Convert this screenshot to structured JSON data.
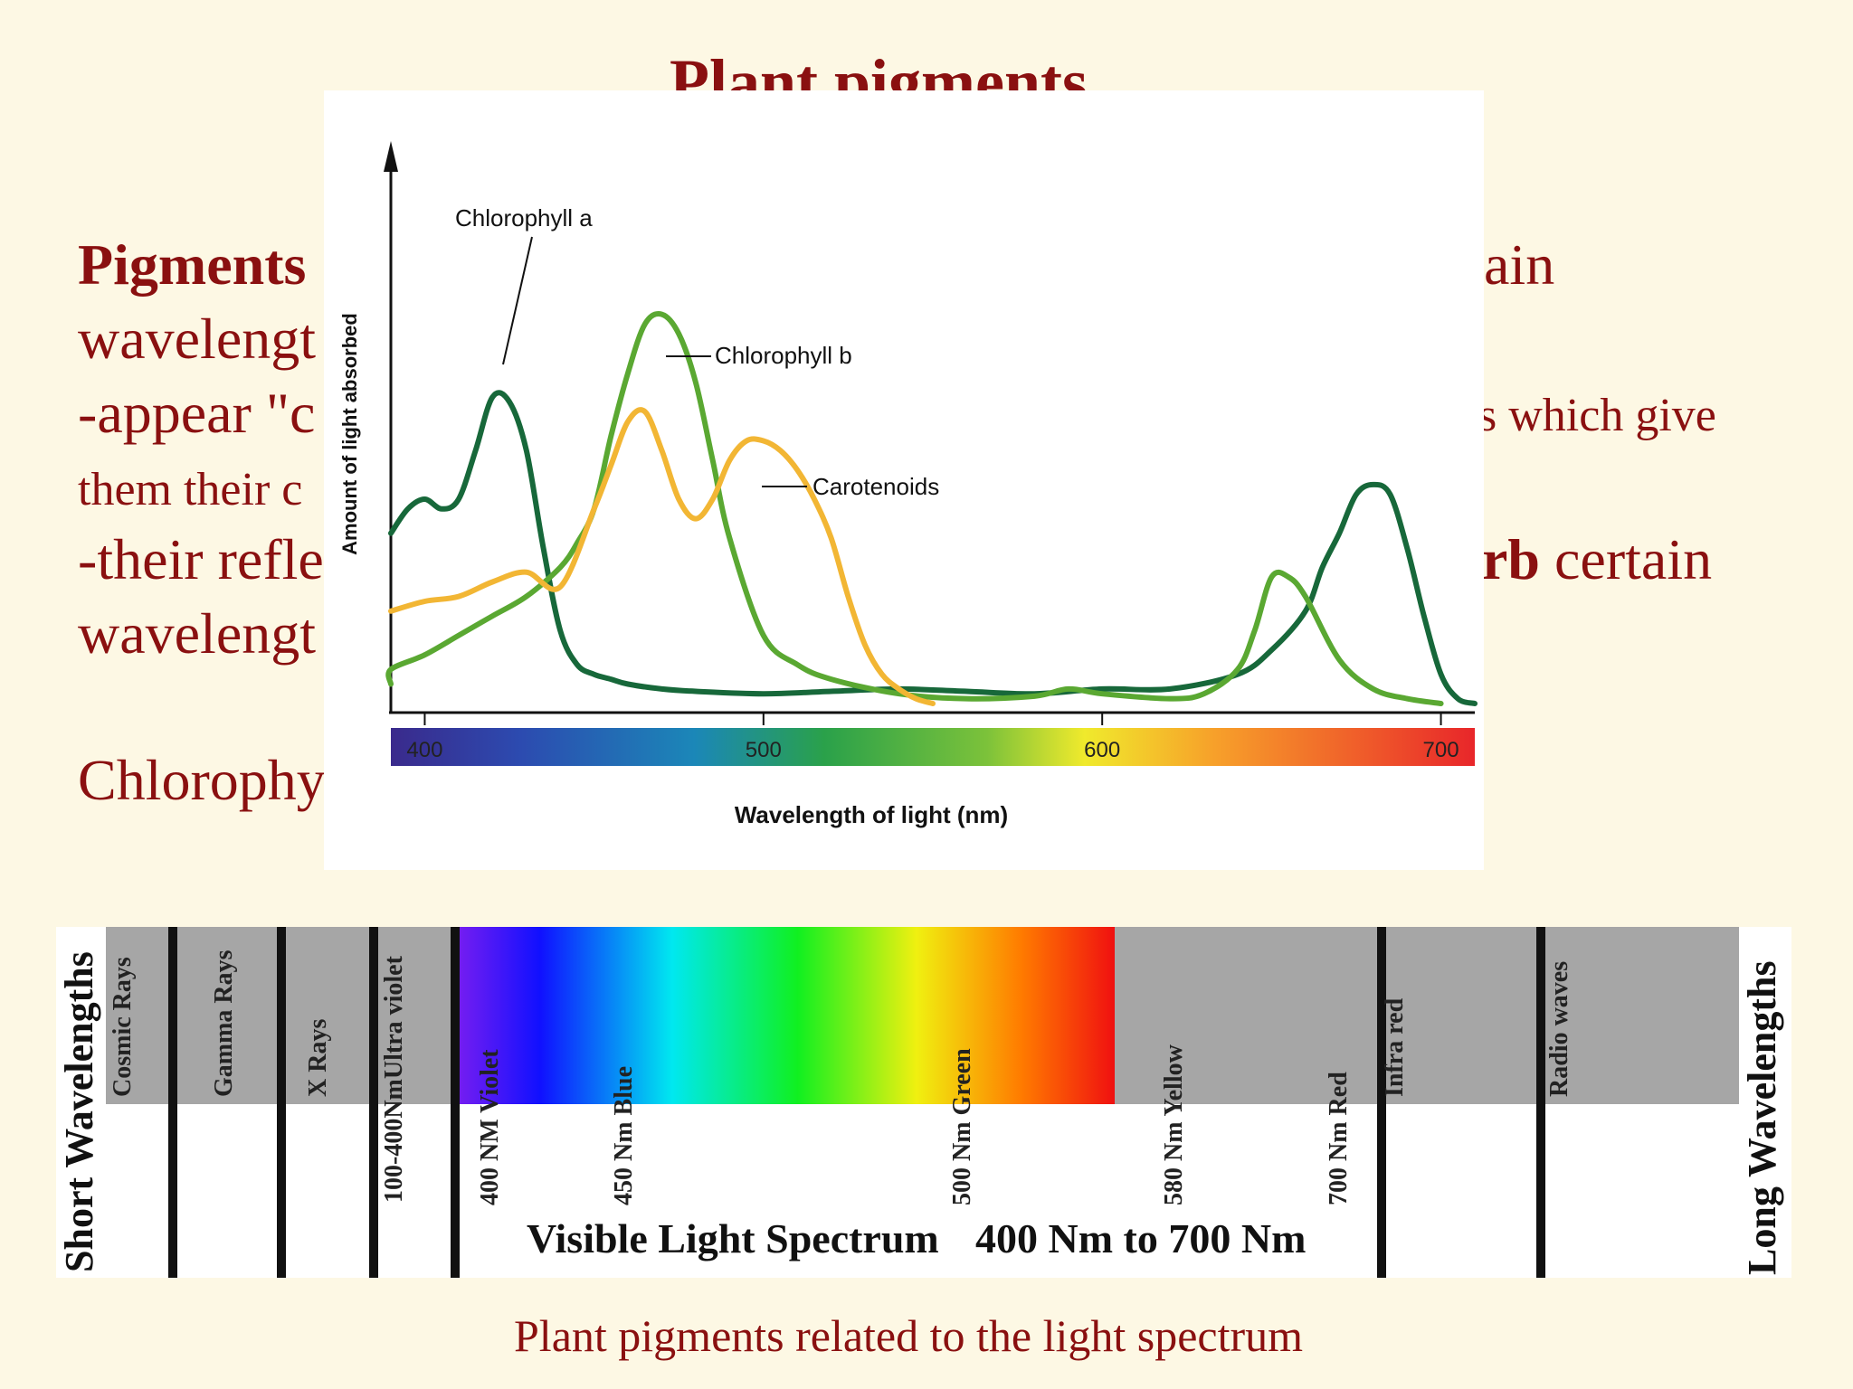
{
  "slide": {
    "title": "Plant pigments",
    "body_fragments": {
      "line1_left": "Pigments",
      "line1_right": "ain",
      "line2_left": "wavelengt",
      "line3_left": "-appear \"c",
      "line3_right": "s which give",
      "line4_left": "them their c",
      "line5_left": "-their refle",
      "line5_right_bold": "rb",
      "line5_right": " certain",
      "line6_left": "wavelengt",
      "line7_left": "Chlorophy"
    },
    "caption": "Plant pigments related to the light spectrum"
  },
  "chart_data": [
    {
      "type": "line",
      "title": "",
      "xlabel": "Wavelength of light (nm)",
      "ylabel": "Amount of light absorbed",
      "xlim": [
        390,
        710
      ],
      "x_ticks": [
        "400",
        "500",
        "600",
        "700"
      ],
      "y_ticks": [],
      "grid": false,
      "legend": "inline labels",
      "series": [
        {
          "name": "Chlorophyll a",
          "color": "#17683a",
          "x": [
            380,
            395,
            400,
            405,
            410,
            415,
            420,
            425,
            430,
            435,
            440,
            445,
            450,
            455,
            460,
            470,
            480,
            500,
            520,
            540,
            560,
            580,
            600,
            620,
            640,
            650,
            660,
            665,
            670,
            675,
            680,
            685,
            690,
            695,
            700,
            705,
            710
          ],
          "y": [
            0.35,
            0.4,
            0.42,
            0.4,
            0.42,
            0.52,
            0.63,
            0.62,
            0.52,
            0.32,
            0.15,
            0.08,
            0.06,
            0.05,
            0.04,
            0.03,
            0.025,
            0.02,
            0.025,
            0.03,
            0.025,
            0.02,
            0.03,
            0.03,
            0.06,
            0.11,
            0.19,
            0.28,
            0.35,
            0.43,
            0.45,
            0.43,
            0.32,
            0.18,
            0.06,
            0.01,
            0.0
          ]
        },
        {
          "name": "Chlorophyll b",
          "color": "#5aa832",
          "x": [
            380,
            390,
            400,
            410,
            420,
            430,
            440,
            445,
            450,
            455,
            460,
            465,
            470,
            475,
            480,
            485,
            490,
            500,
            510,
            520,
            540,
            560,
            580,
            590,
            600,
            620,
            630,
            640,
            645,
            650,
            655,
            660,
            670,
            680,
            690,
            700
          ],
          "y": [
            0.04,
            0.07,
            0.1,
            0.14,
            0.18,
            0.22,
            0.28,
            0.33,
            0.4,
            0.55,
            0.68,
            0.78,
            0.8,
            0.76,
            0.66,
            0.5,
            0.34,
            0.14,
            0.08,
            0.05,
            0.02,
            0.01,
            0.015,
            0.03,
            0.02,
            0.01,
            0.02,
            0.07,
            0.15,
            0.26,
            0.26,
            0.22,
            0.09,
            0.03,
            0.01,
            0.0
          ]
        },
        {
          "name": "Carotenoids",
          "color": "#f2b634",
          "x": [
            380,
            400,
            410,
            420,
            430,
            440,
            450,
            455,
            460,
            465,
            470,
            475,
            480,
            485,
            490,
            495,
            500,
            505,
            510,
            515,
            520,
            525,
            530,
            535,
            540,
            545,
            550
          ],
          "y": [
            0.19,
            0.21,
            0.22,
            0.25,
            0.27,
            0.24,
            0.4,
            0.49,
            0.58,
            0.6,
            0.52,
            0.42,
            0.38,
            0.42,
            0.5,
            0.54,
            0.54,
            0.52,
            0.48,
            0.42,
            0.34,
            0.22,
            0.12,
            0.06,
            0.03,
            0.01,
            0.0
          ]
        }
      ],
      "color_bar": {
        "from": 390,
        "to": 710
      }
    },
    {
      "type": "table",
      "title": "Visible Light Spectrum",
      "subtitle": "400 Nm to 700 Nm",
      "left_label": "Short Wavelengths",
      "right_label": "Long Wavelengths",
      "regions": [
        "Cosmic Rays",
        "Gamma Rays",
        "X Rays",
        "100-400NmUltra violet",
        "Infra red",
        "Radio waves"
      ],
      "visible_marks": [
        {
          "nm": "400 NM",
          "color": "Violet"
        },
        {
          "nm": "450 Nm",
          "color": "Blue"
        },
        {
          "nm": "500 Nm",
          "color": "Green"
        },
        {
          "nm": "580 Nm",
          "color": "Yellow"
        },
        {
          "nm": "700 Nm",
          "color": "Red"
        }
      ]
    }
  ]
}
